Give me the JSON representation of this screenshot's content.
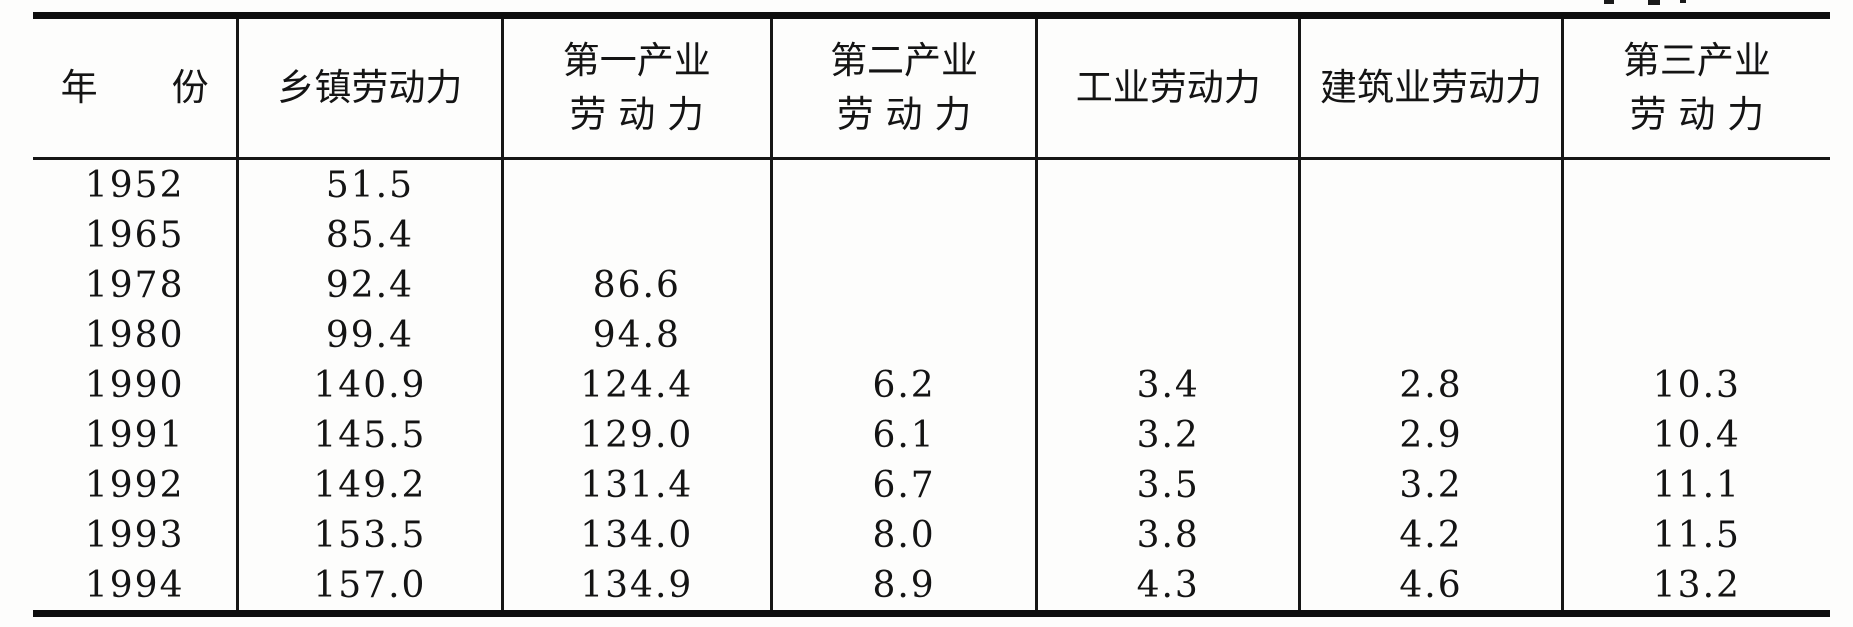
{
  "page": {
    "background": "#fdfdfc",
    "ink_color": "#141414",
    "rule_color": "#0e0e0e"
  },
  "table": {
    "columns": [
      {
        "line1": "年　　份",
        "line2": ""
      },
      {
        "line1": "乡镇劳动力",
        "line2": ""
      },
      {
        "line1": "第一产业",
        "line2": "劳 动 力"
      },
      {
        "line1": "第二产业",
        "line2": "劳 动 力"
      },
      {
        "line1": "工业劳动力",
        "line2": ""
      },
      {
        "line1": "建筑业劳动力",
        "line2": ""
      },
      {
        "line1": "第三产业",
        "line2": "劳 动 力"
      }
    ],
    "rows": [
      {
        "cells": [
          "1952",
          "51.5",
          "",
          "",
          "",
          "",
          ""
        ]
      },
      {
        "cells": [
          "1965",
          "85.4",
          "",
          "",
          "",
          "",
          ""
        ]
      },
      {
        "cells": [
          "1978",
          "92.4",
          "86.6",
          "",
          "",
          "",
          ""
        ]
      },
      {
        "cells": [
          "1980",
          "99.4",
          "94.8",
          "",
          "",
          "",
          ""
        ]
      },
      {
        "cells": [
          "1990",
          "140.9",
          "124.4",
          "6.2",
          "3.4",
          "2.8",
          "10.3"
        ]
      },
      {
        "cells": [
          "1991",
          "145.5",
          "129.0",
          "6.1",
          "3.2",
          "2.9",
          "10.4"
        ]
      },
      {
        "cells": [
          "1992",
          "149.2",
          "131.4",
          "6.7",
          "3.5",
          "3.2",
          "11.1"
        ]
      },
      {
        "cells": [
          "1993",
          "153.5",
          "134.0",
          "8.0",
          "3.8",
          "4.2",
          "11.5"
        ]
      },
      {
        "cells": [
          "1994",
          "157.0",
          "134.9",
          "8.9",
          "4.3",
          "4.6",
          "13.2"
        ]
      }
    ]
  }
}
